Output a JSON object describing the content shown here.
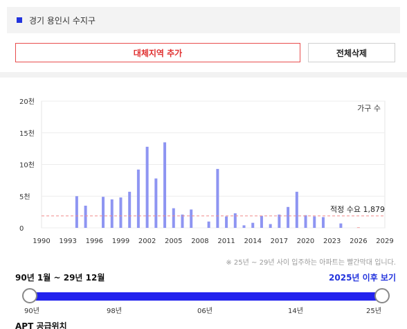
{
  "region": {
    "label": "경기 용인시 수지구"
  },
  "buttons": {
    "add_label": "대체지역 추가",
    "delete_label": "전체삭제"
  },
  "chart_data": {
    "type": "bar",
    "series_label": "가구 수",
    "ylim": [
      0,
      20000
    ],
    "y_ticks": [
      {
        "value": 0,
        "label": "0"
      },
      {
        "value": 5000,
        "label": "5천"
      },
      {
        "value": 10000,
        "label": "10천"
      },
      {
        "value": 15000,
        "label": "15천"
      },
      {
        "value": 20000,
        "label": "20천"
      }
    ],
    "x_range": [
      1990,
      2029
    ],
    "x_ticks": [
      "1990",
      "1993",
      "1996",
      "1999",
      "2002",
      "2005",
      "2008",
      "2011",
      "2014",
      "2017",
      "2020",
      "2023",
      "2026",
      "2029"
    ],
    "x": [
      1994,
      1995,
      1997,
      1998,
      1999,
      2000,
      2001,
      2002,
      2003,
      2004,
      2005,
      2006,
      2007,
      2009,
      2010,
      2011,
      2012,
      2013,
      2014,
      2015,
      2016,
      2017,
      2018,
      2019,
      2020,
      2021,
      2022,
      2024
    ],
    "values": [
      5000,
      3500,
      4900,
      4500,
      4800,
      5700,
      9200,
      12800,
      7800,
      13500,
      3100,
      2100,
      2900,
      1000,
      9300,
      1800,
      2300,
      400,
      800,
      1900,
      600,
      2100,
      3300,
      5700,
      2000,
      1800,
      1700,
      700
    ],
    "future_x": [
      2026
    ],
    "future_values": [
      100
    ],
    "threshold": {
      "value": 1879,
      "label": "적정 수요 1,879"
    },
    "colors": {
      "bar": "#8e95f2",
      "future_bar": "#f3a4a4",
      "threshold": "#f08a8a"
    },
    "grid": true
  },
  "note": "※ 25년 ~ 29년 사이 입주하는 아파트는 빨간막대 입니다.",
  "range": {
    "label": "90년 1월 ~ 29년 12월",
    "after_link": "2025년 이후 보기"
  },
  "slider": {
    "ticks": [
      "90년",
      "98년",
      "06년",
      "14년",
      "25년"
    ]
  },
  "section": {
    "title": "APT 공급위치"
  }
}
